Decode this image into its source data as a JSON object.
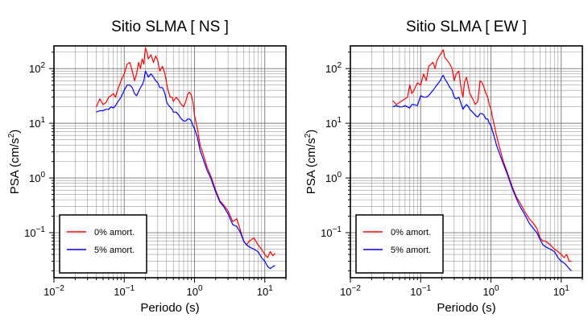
{
  "chart_data": [
    {
      "type": "line",
      "title": "Sitio SLMA [ NS ]",
      "xlabel": "Periodo (s)",
      "ylabel_main": "PSA (cm/s",
      "ylabel_sup": "2",
      "ylabel_tail": ")",
      "xscale": "log",
      "yscale": "log",
      "xlim": [
        0.01,
        20
      ],
      "ylim": [
        0.015,
        260
      ],
      "grid": true,
      "legend_position": "lower-left",
      "x_ticks": [
        {
          "value": 0.01,
          "base": "10",
          "exp": "−2"
        },
        {
          "value": 0.1,
          "base": "10",
          "exp": "−1"
        },
        {
          "value": 1,
          "base": "10",
          "exp": "0"
        },
        {
          "value": 10,
          "base": "10",
          "exp": "1"
        }
      ],
      "y_ticks": [
        {
          "value": 0.1,
          "base": "10",
          "exp": "−1"
        },
        {
          "value": 1,
          "base": "10",
          "exp": "0"
        },
        {
          "value": 10,
          "base": "10",
          "exp": "1"
        },
        {
          "value": 100,
          "base": "10",
          "exp": "2"
        }
      ],
      "series": [
        {
          "name": "0% amort.",
          "color": "#ff0000",
          "x": [
            0.04,
            0.045,
            0.05,
            0.055,
            0.06,
            0.065,
            0.07,
            0.075,
            0.08,
            0.09,
            0.1,
            0.11,
            0.12,
            0.13,
            0.14,
            0.15,
            0.16,
            0.17,
            0.18,
            0.19,
            0.2,
            0.21,
            0.22,
            0.24,
            0.26,
            0.28,
            0.3,
            0.32,
            0.35,
            0.38,
            0.4,
            0.42,
            0.45,
            0.48,
            0.5,
            0.55,
            0.6,
            0.65,
            0.7,
            0.75,
            0.8,
            0.85,
            0.9,
            0.95,
            1.0,
            1.1,
            1.2,
            1.3,
            1.5,
            1.7,
            2.0,
            2.3,
            2.6,
            3.0,
            3.5,
            4.0,
            4.5,
            5.0,
            5.5,
            6.0,
            7.0,
            8.0,
            9.0,
            10,
            11,
            12,
            13,
            14
          ],
          "y": [
            20,
            28,
            22,
            24,
            30,
            32,
            35,
            30,
            40,
            60,
            80,
            120,
            130,
            90,
            60,
            80,
            130,
            100,
            150,
            120,
            240,
            200,
            150,
            180,
            130,
            170,
            140,
            90,
            110,
            80,
            55,
            40,
            30,
            30,
            25,
            30,
            26,
            22,
            20,
            25,
            34,
            37,
            33,
            25,
            14,
            8,
            4,
            3,
            1.6,
            1.1,
            0.6,
            0.38,
            0.32,
            0.25,
            0.16,
            0.18,
            0.11,
            0.07,
            0.06,
            0.07,
            0.08,
            0.06,
            0.05,
            0.04,
            0.035,
            0.045,
            0.038,
            0.042
          ]
        },
        {
          "name": "5% amort.",
          "color": "#0000ff",
          "x": [
            0.04,
            0.045,
            0.05,
            0.055,
            0.06,
            0.065,
            0.07,
            0.075,
            0.08,
            0.09,
            0.1,
            0.11,
            0.12,
            0.13,
            0.14,
            0.15,
            0.16,
            0.17,
            0.18,
            0.19,
            0.2,
            0.21,
            0.22,
            0.24,
            0.26,
            0.28,
            0.3,
            0.32,
            0.35,
            0.38,
            0.4,
            0.42,
            0.45,
            0.48,
            0.5,
            0.55,
            0.6,
            0.65,
            0.7,
            0.75,
            0.8,
            0.85,
            0.9,
            0.95,
            1.0,
            1.1,
            1.2,
            1.3,
            1.5,
            1.7,
            2.0,
            2.3,
            2.6,
            3.0,
            3.5,
            4.0,
            4.5,
            5.0,
            5.5,
            6.0,
            7.0,
            8.0,
            9.0,
            10,
            11,
            12,
            13,
            14
          ],
          "y": [
            16,
            17,
            17,
            18,
            18,
            20,
            19,
            21,
            24,
            30,
            40,
            50,
            50,
            45,
            35,
            32,
            38,
            45,
            50,
            60,
            90,
            80,
            70,
            80,
            70,
            60,
            55,
            45,
            45,
            35,
            25,
            22,
            20,
            18,
            16,
            16,
            14,
            12,
            11,
            11,
            12,
            12,
            11,
            9,
            8,
            5.5,
            3.2,
            2.4,
            1.4,
            1.0,
            0.55,
            0.36,
            0.3,
            0.22,
            0.14,
            0.13,
            0.1,
            0.07,
            0.06,
            0.055,
            0.05,
            0.045,
            0.035,
            0.03,
            0.024,
            0.022,
            0.024,
            0.025
          ]
        }
      ],
      "legend_entries": [
        "0% amort.",
        "5% amort."
      ]
    },
    {
      "type": "line",
      "title": "Sitio SLMA [ EW ]",
      "xlabel": "Periodo (s)",
      "ylabel_main": "PSA (cm/s",
      "ylabel_sup": "2",
      "ylabel_tail": ")",
      "xscale": "log",
      "yscale": "log",
      "xlim": [
        0.01,
        20
      ],
      "ylim": [
        0.015,
        260
      ],
      "grid": true,
      "legend_position": "lower-left",
      "x_ticks": [
        {
          "value": 0.01,
          "base": "10",
          "exp": "−2"
        },
        {
          "value": 0.1,
          "base": "10",
          "exp": "−1"
        },
        {
          "value": 1,
          "base": "10",
          "exp": "0"
        },
        {
          "value": 10,
          "base": "10",
          "exp": "1"
        }
      ],
      "y_ticks": [
        {
          "value": 0.1,
          "base": "10",
          "exp": "−1"
        },
        {
          "value": 1,
          "base": "10",
          "exp": "0"
        },
        {
          "value": 10,
          "base": "10",
          "exp": "1"
        },
        {
          "value": 100,
          "base": "10",
          "exp": "2"
        }
      ],
      "series": [
        {
          "name": "0% amort.",
          "color": "#ff0000",
          "x": [
            0.04,
            0.045,
            0.05,
            0.055,
            0.06,
            0.065,
            0.07,
            0.075,
            0.08,
            0.09,
            0.1,
            0.11,
            0.12,
            0.13,
            0.14,
            0.15,
            0.16,
            0.17,
            0.18,
            0.19,
            0.2,
            0.21,
            0.22,
            0.24,
            0.26,
            0.28,
            0.3,
            0.32,
            0.35,
            0.38,
            0.4,
            0.42,
            0.45,
            0.48,
            0.5,
            0.55,
            0.6,
            0.65,
            0.7,
            0.75,
            0.8,
            0.85,
            0.9,
            0.95,
            1.0,
            1.1,
            1.2,
            1.3,
            1.5,
            1.7,
            2.0,
            2.3,
            2.6,
            3.0,
            3.5,
            4.0,
            4.5,
            5.0,
            5.5,
            6.0,
            7.0,
            8.0,
            9.0,
            10,
            11,
            12,
            13,
            14
          ],
          "y": [
            26,
            22,
            24,
            26,
            28,
            30,
            50,
            35,
            40,
            55,
            50,
            80,
            60,
            110,
            120,
            130,
            100,
            140,
            160,
            180,
            200,
            220,
            160,
            140,
            120,
            100,
            60,
            80,
            90,
            40,
            30,
            55,
            70,
            45,
            35,
            28,
            22,
            25,
            60,
            55,
            45,
            35,
            30,
            22,
            18,
            10,
            6,
            4,
            2,
            1.3,
            0.7,
            0.45,
            0.35,
            0.25,
            0.18,
            0.15,
            0.12,
            0.08,
            0.07,
            0.07,
            0.06,
            0.05,
            0.045,
            0.04,
            0.035,
            0.04,
            0.03,
            0.03
          ]
        },
        {
          "name": "5% amort.",
          "color": "#0000ff",
          "x": [
            0.04,
            0.045,
            0.05,
            0.055,
            0.06,
            0.065,
            0.07,
            0.075,
            0.08,
            0.09,
            0.1,
            0.11,
            0.12,
            0.13,
            0.14,
            0.15,
            0.16,
            0.17,
            0.18,
            0.19,
            0.2,
            0.21,
            0.22,
            0.24,
            0.26,
            0.28,
            0.3,
            0.32,
            0.35,
            0.38,
            0.4,
            0.42,
            0.45,
            0.48,
            0.5,
            0.55,
            0.6,
            0.65,
            0.7,
            0.75,
            0.8,
            0.85,
            0.9,
            0.95,
            1.0,
            1.1,
            1.2,
            1.3,
            1.5,
            1.7,
            2.0,
            2.3,
            2.6,
            3.0,
            3.5,
            4.0,
            4.5,
            5.0,
            5.5,
            6.0,
            7.0,
            8.0,
            9.0,
            10,
            11,
            12,
            13,
            14
          ],
          "y": [
            20,
            21,
            20,
            20,
            21,
            20,
            19,
            22,
            22,
            21,
            32,
            30,
            30,
            32,
            36,
            40,
            45,
            50,
            55,
            60,
            70,
            75,
            65,
            55,
            45,
            40,
            30,
            28,
            30,
            22,
            18,
            20,
            22,
            20,
            18,
            16,
            14,
            13,
            15,
            15,
            14,
            12,
            12,
            10,
            9,
            6,
            4,
            3,
            1.8,
            1.2,
            0.65,
            0.42,
            0.3,
            0.22,
            0.15,
            0.12,
            0.1,
            0.075,
            0.06,
            0.055,
            0.05,
            0.045,
            0.035,
            0.03,
            0.028,
            0.025,
            0.022,
            0.02
          ]
        }
      ],
      "legend_entries": [
        "0% amort.",
        "5% amort."
      ]
    }
  ]
}
